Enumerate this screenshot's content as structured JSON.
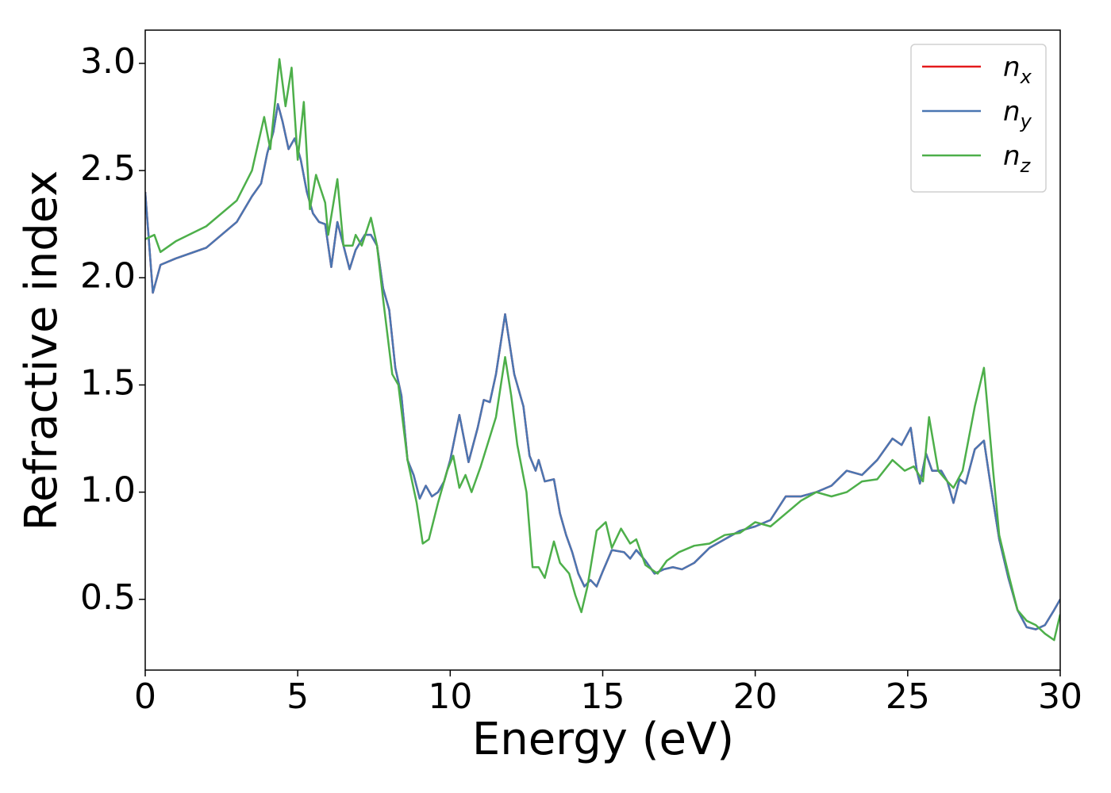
{
  "chart_data": {
    "type": "line",
    "xlabel": "Energy (eV)",
    "ylabel": "Refractive index",
    "xlim": [
      0,
      30
    ],
    "xticks": [
      0,
      5,
      10,
      15,
      20,
      25,
      30
    ],
    "ylim": [
      0.17,
      3.155
    ],
    "yticks": [
      0.5,
      {
        "value": 1,
        "label": "1.0"
      },
      1.5,
      {
        "value": 2,
        "label": "2.0"
      },
      2.5,
      {
        "value": 3,
        "label": "3.0"
      }
    ],
    "legend": "upper right",
    "grid": false,
    "series": [
      {
        "name": "nx",
        "color": "#e41a1c",
        "x": [
          0,
          0.25,
          0.5,
          1,
          2,
          3,
          3.5,
          3.8,
          4.0,
          4.2,
          4.35,
          4.5,
          4.7,
          4.9,
          5.1,
          5.3,
          5.5,
          5.7,
          5.9,
          6.1,
          6.3,
          6.5,
          6.7,
          6.9,
          7.2,
          7.4,
          7.6,
          7.8,
          8.0,
          8.2,
          8.4,
          8.6,
          8.8,
          9.0,
          9.2,
          9.4,
          9.6,
          9.8,
          10.0,
          10.3,
          10.6,
          10.9,
          11.1,
          11.3,
          11.5,
          11.8,
          12.1,
          12.4,
          12.6,
          12.8,
          12.9,
          13.1,
          13.4,
          13.6,
          13.8,
          14.0,
          14.2,
          14.4,
          14.6,
          14.8,
          15.0,
          15.3,
          15.7,
          15.9,
          16.1,
          16.4,
          16.7,
          17.0,
          17.3,
          17.6,
          18.0,
          18.5,
          19.0,
          19.5,
          20.0,
          20.5,
          21.0,
          21.5,
          22.0,
          22.5,
          23.0,
          23.5,
          24.0,
          24.5,
          24.8,
          25.1,
          25.3,
          25.4,
          25.6,
          25.8,
          26.1,
          26.3,
          26.5,
          26.7,
          26.9,
          27.2,
          27.5,
          27.7,
          28.0,
          28.3,
          28.6,
          28.9,
          29.2,
          29.5,
          29.8,
          30.0
        ],
        "values": [
          2.4,
          1.93,
          2.06,
          2.09,
          2.14,
          2.26,
          2.38,
          2.44,
          2.58,
          2.68,
          2.81,
          2.73,
          2.6,
          2.65,
          2.55,
          2.4,
          2.3,
          2.26,
          2.25,
          2.05,
          2.26,
          2.15,
          2.04,
          2.13,
          2.2,
          2.2,
          2.15,
          1.95,
          1.85,
          1.58,
          1.45,
          1.15,
          1.08,
          0.97,
          1.03,
          0.98,
          1.0,
          1.05,
          1.15,
          1.36,
          1.14,
          1.3,
          1.43,
          1.42,
          1.55,
          1.83,
          1.55,
          1.4,
          1.17,
          1.1,
          1.15,
          1.05,
          1.06,
          0.9,
          0.8,
          0.72,
          0.62,
          0.56,
          0.59,
          0.56,
          0.63,
          0.73,
          0.72,
          0.69,
          0.73,
          0.68,
          0.62,
          0.64,
          0.65,
          0.64,
          0.67,
          0.74,
          0.78,
          0.82,
          0.84,
          0.87,
          0.98,
          0.98,
          1.0,
          1.03,
          1.1,
          1.08,
          1.15,
          1.25,
          1.22,
          1.3,
          1.1,
          1.04,
          1.18,
          1.1,
          1.1,
          1.05,
          0.95,
          1.06,
          1.04,
          1.2,
          1.24,
          1.05,
          0.78,
          0.6,
          0.45,
          0.37,
          0.36,
          0.38,
          0.45,
          0.5
        ]
      },
      {
        "name": "ny",
        "color": "#4a76b2",
        "x": [
          0,
          0.25,
          0.5,
          1,
          2,
          3,
          3.5,
          3.8,
          4.0,
          4.2,
          4.35,
          4.5,
          4.7,
          4.9,
          5.1,
          5.3,
          5.5,
          5.7,
          5.9,
          6.1,
          6.3,
          6.5,
          6.7,
          6.9,
          7.2,
          7.4,
          7.6,
          7.8,
          8.0,
          8.2,
          8.4,
          8.6,
          8.8,
          9.0,
          9.2,
          9.4,
          9.6,
          9.8,
          10.0,
          10.3,
          10.6,
          10.9,
          11.1,
          11.3,
          11.5,
          11.8,
          12.1,
          12.4,
          12.6,
          12.8,
          12.9,
          13.1,
          13.4,
          13.6,
          13.8,
          14.0,
          14.2,
          14.4,
          14.6,
          14.8,
          15.0,
          15.3,
          15.7,
          15.9,
          16.1,
          16.4,
          16.7,
          17.0,
          17.3,
          17.6,
          18.0,
          18.5,
          19.0,
          19.5,
          20.0,
          20.5,
          21.0,
          21.5,
          22.0,
          22.5,
          23.0,
          23.5,
          24.0,
          24.5,
          24.8,
          25.1,
          25.3,
          25.4,
          25.6,
          25.8,
          26.1,
          26.3,
          26.5,
          26.7,
          26.9,
          27.2,
          27.5,
          27.7,
          28.0,
          28.3,
          28.6,
          28.9,
          29.2,
          29.5,
          29.8,
          30.0
        ],
        "values": [
          2.4,
          1.93,
          2.06,
          2.09,
          2.14,
          2.26,
          2.38,
          2.44,
          2.58,
          2.68,
          2.81,
          2.73,
          2.6,
          2.65,
          2.55,
          2.4,
          2.3,
          2.26,
          2.25,
          2.05,
          2.26,
          2.15,
          2.04,
          2.13,
          2.2,
          2.2,
          2.15,
          1.95,
          1.85,
          1.58,
          1.45,
          1.15,
          1.08,
          0.97,
          1.03,
          0.98,
          1.0,
          1.05,
          1.15,
          1.36,
          1.14,
          1.3,
          1.43,
          1.42,
          1.55,
          1.83,
          1.55,
          1.4,
          1.17,
          1.1,
          1.15,
          1.05,
          1.06,
          0.9,
          0.8,
          0.72,
          0.62,
          0.56,
          0.59,
          0.56,
          0.63,
          0.73,
          0.72,
          0.69,
          0.73,
          0.68,
          0.62,
          0.64,
          0.65,
          0.64,
          0.67,
          0.74,
          0.78,
          0.82,
          0.84,
          0.87,
          0.98,
          0.98,
          1.0,
          1.03,
          1.1,
          1.08,
          1.15,
          1.25,
          1.22,
          1.3,
          1.1,
          1.04,
          1.18,
          1.1,
          1.1,
          1.05,
          0.95,
          1.06,
          1.04,
          1.2,
          1.24,
          1.05,
          0.78,
          0.6,
          0.45,
          0.37,
          0.36,
          0.38,
          0.45,
          0.5
        ]
      },
      {
        "name": "nz",
        "color": "#4daf4a",
        "x": [
          0,
          0.3,
          0.5,
          1,
          2,
          3,
          3.5,
          3.9,
          4.1,
          4.4,
          4.6,
          4.8,
          5.0,
          5.2,
          5.4,
          5.6,
          5.9,
          6.0,
          6.3,
          6.5,
          6.8,
          6.9,
          7.1,
          7.4,
          7.6,
          7.8,
          8.1,
          8.3,
          8.6,
          8.9,
          9.1,
          9.3,
          9.6,
          9.9,
          10.1,
          10.3,
          10.5,
          10.7,
          11.0,
          11.5,
          11.8,
          12.0,
          12.2,
          12.5,
          12.7,
          12.9,
          13.1,
          13.4,
          13.6,
          13.9,
          14.1,
          14.3,
          14.5,
          14.8,
          15.1,
          15.3,
          15.6,
          15.9,
          16.1,
          16.4,
          16.8,
          17.1,
          17.5,
          18.0,
          18.5,
          19.0,
          19.5,
          20.0,
          20.5,
          21.0,
          21.5,
          22.0,
          22.5,
          23.0,
          23.5,
          24.0,
          24.5,
          24.9,
          25.2,
          25.5,
          25.7,
          26.0,
          26.3,
          26.5,
          26.8,
          27.2,
          27.5,
          27.8,
          28.0,
          28.3,
          28.6,
          28.9,
          29.2,
          29.5,
          29.8,
          30.0
        ],
        "values": [
          2.18,
          2.2,
          2.12,
          2.17,
          2.24,
          2.36,
          2.5,
          2.75,
          2.6,
          3.02,
          2.8,
          2.98,
          2.55,
          2.82,
          2.32,
          2.48,
          2.35,
          2.2,
          2.46,
          2.15,
          2.15,
          2.2,
          2.15,
          2.28,
          2.15,
          1.9,
          1.55,
          1.5,
          1.15,
          0.95,
          0.76,
          0.78,
          0.95,
          1.1,
          1.17,
          1.02,
          1.08,
          1.0,
          1.12,
          1.35,
          1.63,
          1.45,
          1.22,
          1.0,
          0.65,
          0.65,
          0.6,
          0.77,
          0.67,
          0.62,
          0.52,
          0.44,
          0.56,
          0.82,
          0.86,
          0.74,
          0.83,
          0.76,
          0.78,
          0.66,
          0.62,
          0.68,
          0.72,
          0.75,
          0.76,
          0.8,
          0.81,
          0.86,
          0.84,
          0.9,
          0.96,
          1.0,
          0.98,
          1.0,
          1.05,
          1.06,
          1.15,
          1.1,
          1.12,
          1.05,
          1.35,
          1.1,
          1.05,
          1.02,
          1.1,
          1.4,
          1.58,
          1.1,
          0.8,
          0.62,
          0.45,
          0.4,
          0.38,
          0.34,
          0.31,
          0.43
        ]
      }
    ]
  }
}
